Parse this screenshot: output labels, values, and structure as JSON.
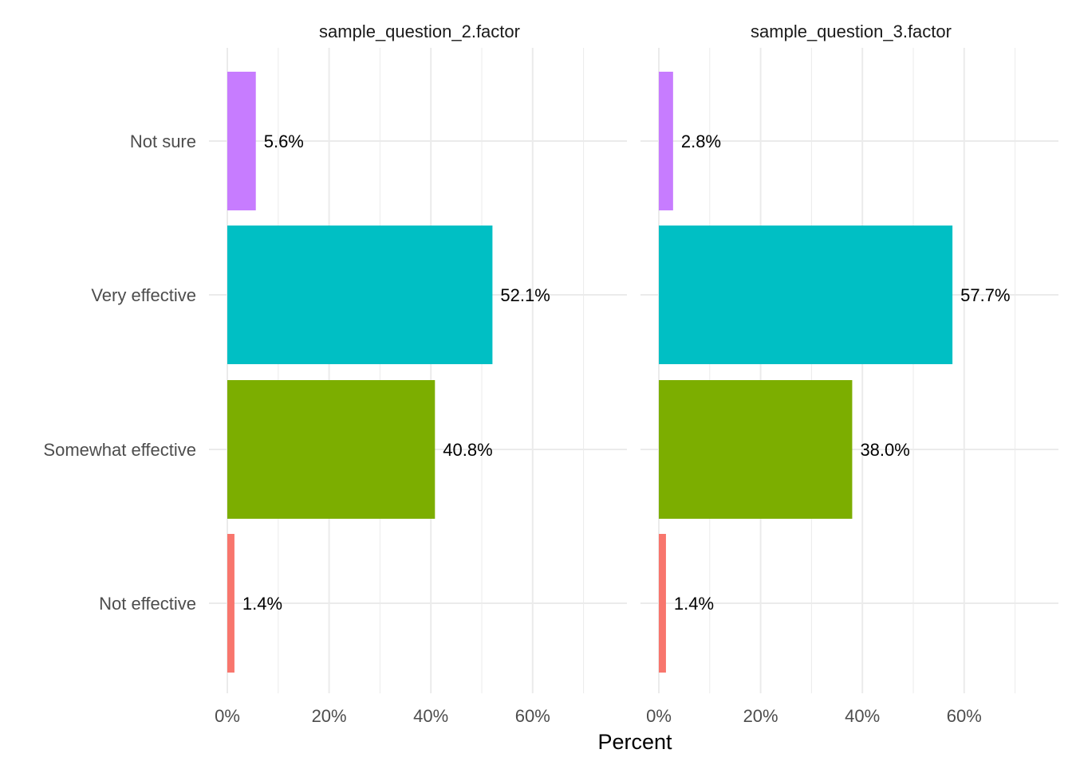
{
  "chart_data": {
    "type": "bar",
    "orientation": "horizontal",
    "categories": [
      "Not effective",
      "Somewhat effective",
      "Very effective",
      "Not sure"
    ],
    "category_colors": [
      "#F8766D",
      "#7CAE00",
      "#00BFC4",
      "#C77CFF"
    ],
    "xlabel": "Percent",
    "ylabel": "",
    "xlim": [
      0,
      76
    ],
    "x_ticks": [
      0,
      20,
      40,
      60
    ],
    "x_tick_labels": [
      "0%",
      "20%",
      "40%",
      "60%"
    ],
    "grid": true,
    "legend": "none",
    "panels": [
      {
        "title": "sample_question_2.factor",
        "values": [
          1.4,
          40.8,
          52.1,
          5.6
        ],
        "value_labels": [
          "1.4%",
          "40.8%",
          "52.1%",
          "5.6%"
        ]
      },
      {
        "title": "sample_question_3.factor",
        "values": [
          1.4,
          38.0,
          57.7,
          2.8
        ],
        "value_labels": [
          "1.4%",
          "38.0%",
          "57.7%",
          "2.8%"
        ]
      }
    ]
  }
}
